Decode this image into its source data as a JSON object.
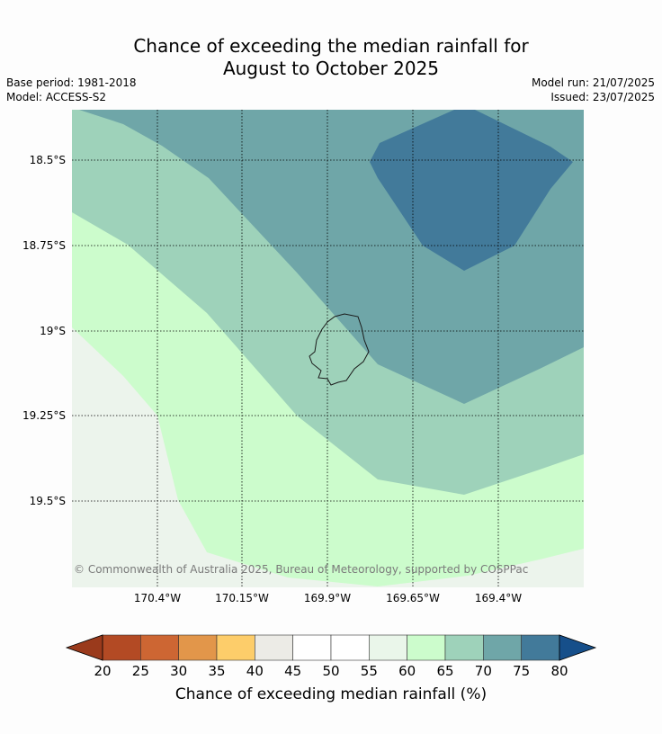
{
  "title_line1": "Chance of exceeding the median rainfall for",
  "title_line2": "August to October 2025",
  "base_period": "Base period: 1981-2018",
  "model": "Model: ACCESS-S2",
  "model_run": "Model run: 21/07/2025",
  "issued": "Issued: 23/07/2025",
  "copyright": "© Commonwealth of Australia 2025, Bureau of Meteorology, supported by COSPPac",
  "lat_ticks": [
    "18.5°S",
    "18.75°S",
    "19°S",
    "19.25°S",
    "19.5°S"
  ],
  "lon_ticks": [
    "170.4°W",
    "170.15°W",
    "169.9°W",
    "169.65°W",
    "169.4°W"
  ],
  "colorbar": {
    "label": "Chance of exceeding median rainfall (%)",
    "ticks": [
      "20",
      "25",
      "30",
      "35",
      "40",
      "45",
      "50",
      "55",
      "60",
      "65",
      "70",
      "75",
      "80"
    ],
    "under_color": "#9a3a1c",
    "over_color": "#164f8a",
    "colors": [
      "#b34a24",
      "#cd6633",
      "#e2964a",
      "#fdcd6a",
      "#ecebe6",
      "#ffffff",
      "#ffffff",
      "#eaf6ea",
      "#ccfccc",
      "#9ed2ba",
      "#6fa6a8",
      "#427a9a"
    ]
  },
  "zone_colors": {
    "z55_60": "#ecf4ec",
    "z60_65": "#ccfccc",
    "z65_70": "#9ed2ba",
    "z70_75": "#6fa6a8",
    "z75_80": "#427a9a"
  }
}
